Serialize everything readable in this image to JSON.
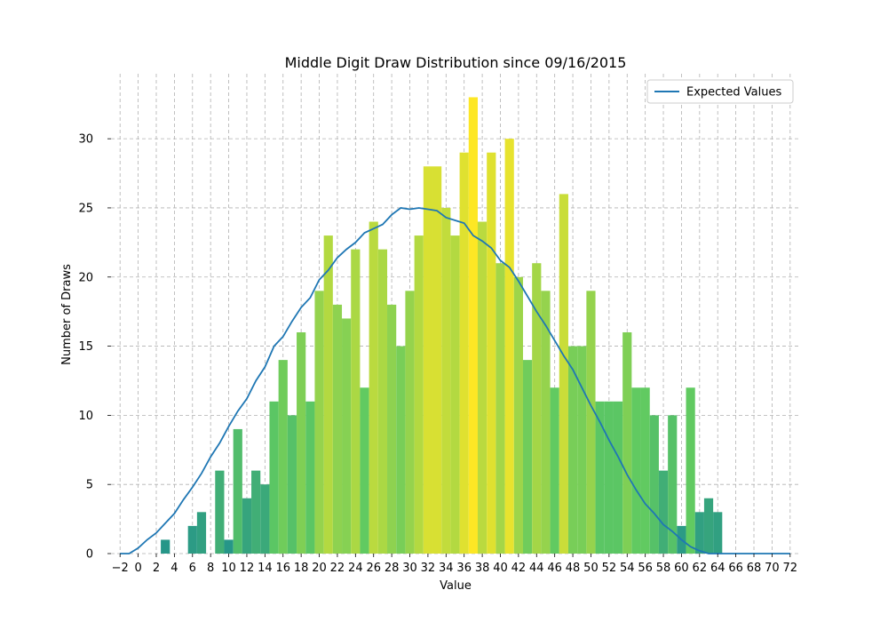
{
  "chart_data": {
    "type": "bar",
    "title": "Middle Digit Draw Distribution since 09/16/2015",
    "xlabel": "Value",
    "ylabel": "Number of Draws",
    "xlim": [
      -3,
      73
    ],
    "ylim": [
      0,
      34.7
    ],
    "xticks": [
      -2,
      0,
      2,
      4,
      6,
      8,
      10,
      12,
      14,
      16,
      18,
      20,
      22,
      24,
      26,
      28,
      30,
      32,
      34,
      36,
      38,
      40,
      42,
      44,
      46,
      48,
      50,
      52,
      54,
      56,
      58,
      60,
      62,
      64,
      66,
      68,
      70,
      72
    ],
    "xtick_labels": [
      "−2",
      "0",
      "2",
      "4",
      "6",
      "8",
      "10",
      "12",
      "14",
      "16",
      "18",
      "20",
      "22",
      "24",
      "26",
      "28",
      "30",
      "32",
      "34",
      "36",
      "38",
      "40",
      "42",
      "44",
      "46",
      "48",
      "50",
      "52",
      "54",
      "56",
      "58",
      "60",
      "62",
      "64",
      "66",
      "68",
      "70",
      "72"
    ],
    "yticks": [
      0,
      5,
      10,
      15,
      20,
      25,
      30
    ],
    "grid": true,
    "legend_position": "top-right",
    "categories": [
      0,
      1,
      2,
      3,
      4,
      5,
      6,
      7,
      8,
      9,
      10,
      11,
      12,
      13,
      14,
      15,
      16,
      17,
      18,
      19,
      20,
      21,
      22,
      23,
      24,
      25,
      26,
      27,
      28,
      29,
      30,
      31,
      32,
      33,
      34,
      35,
      36,
      37,
      38,
      39,
      40,
      41,
      42,
      43,
      44,
      45,
      46,
      47,
      48,
      49,
      50,
      51,
      52,
      53,
      54,
      55,
      56,
      57,
      58,
      59,
      60,
      61,
      62,
      63,
      64
    ],
    "values": [
      0,
      0,
      0,
      1,
      0,
      0,
      2,
      3,
      0,
      6,
      1,
      9,
      4,
      6,
      5,
      11,
      14,
      10,
      16,
      11,
      19,
      23,
      18,
      17,
      22,
      12,
      24,
      22,
      18,
      15,
      19,
      23,
      28,
      28,
      25,
      23,
      29,
      33,
      24,
      29,
      21,
      30,
      20,
      14,
      21,
      19,
      12,
      26,
      15,
      15,
      19,
      11,
      11,
      11,
      16,
      12,
      12,
      10,
      6,
      10,
      2,
      12,
      3,
      4,
      3
    ],
    "expected_line": {
      "name": "Expected Values",
      "color": "#1f77b4",
      "x": [
        -2,
        -1,
        0,
        1,
        2,
        3,
        4,
        5,
        6,
        7,
        8,
        9,
        10,
        11,
        12,
        13,
        14,
        15,
        16,
        17,
        18,
        19,
        20,
        21,
        22,
        23,
        24,
        25,
        26,
        27,
        28,
        29,
        30,
        31,
        32,
        33,
        34,
        35,
        36,
        37,
        38,
        39,
        40,
        41,
        42,
        43,
        44,
        45,
        46,
        47,
        48,
        49,
        50,
        51,
        52,
        53,
        54,
        55,
        56,
        57,
        58,
        59,
        60,
        61,
        62,
        63,
        64,
        65,
        66,
        67,
        68,
        69,
        70,
        71,
        72
      ],
      "y": [
        0,
        0,
        0.4,
        1.0,
        1.5,
        2.2,
        2.9,
        3.9,
        4.8,
        5.8,
        7.0,
        8.0,
        9.2,
        10.3,
        11.2,
        12.5,
        13.5,
        15.0,
        15.7,
        16.8,
        17.8,
        18.5,
        19.8,
        20.5,
        21.4,
        22.0,
        22.5,
        23.2,
        23.5,
        23.8,
        24.5,
        25.0,
        24.9,
        25.0,
        24.9,
        24.8,
        24.3,
        24.1,
        23.9,
        23.0,
        22.6,
        22.1,
        21.2,
        20.7,
        19.7,
        18.6,
        17.5,
        16.5,
        15.4,
        14.3,
        13.3,
        12.0,
        10.7,
        9.5,
        8.2,
        7.0,
        5.7,
        4.6,
        3.6,
        2.9,
        2.1,
        1.6,
        1.0,
        0.5,
        0.2,
        0.0,
        0,
        0,
        0,
        0,
        0,
        0,
        0,
        0,
        0
      ]
    },
    "colors": {
      "low": "#21918c",
      "mid": "#5ec962",
      "high": "#fde725"
    }
  }
}
